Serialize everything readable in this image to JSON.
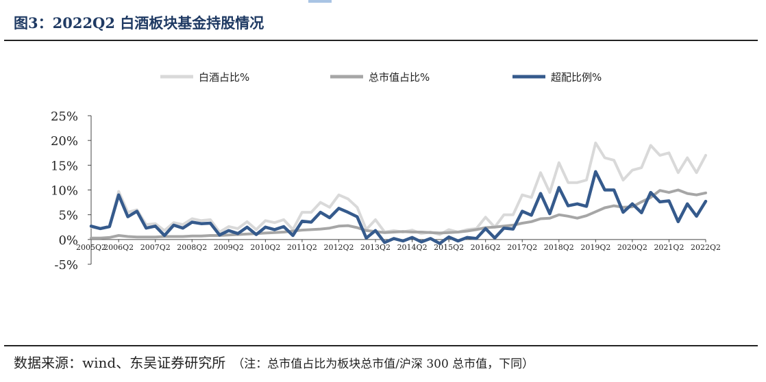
{
  "header": {
    "title": "图3：2022Q2 白酒板块基金持股情况"
  },
  "footer": {
    "source": "数据来源：wind、东吴证券研究所",
    "note": "（注：总市值占比为板块总市值/沪深 300 总市值，下同）"
  },
  "chart_data": {
    "type": "line",
    "title": "",
    "xlabel": "",
    "ylabel": "",
    "ylim": [
      -5,
      25
    ],
    "yticks": [
      "25%",
      "20%",
      "15%",
      "10%",
      "5%",
      "0%",
      "-5%"
    ],
    "ytick_values": [
      25,
      20,
      15,
      10,
      5,
      0,
      -5
    ],
    "x_tick_labels": [
      "2005Q2",
      "2006Q2",
      "2007Q2",
      "2008Q2",
      "2009Q2",
      "2010Q2",
      "2011Q2",
      "2012Q2",
      "2013Q2",
      "2014Q2",
      "2015Q2",
      "2016Q2",
      "2017Q2",
      "2018Q2",
      "2019Q2",
      "2020Q2",
      "2021Q2",
      "2022Q2"
    ],
    "x": [
      "2005Q2",
      "2005Q4",
      "2006Q1",
      "2006Q2",
      "2006Q3",
      "2006Q4",
      "2007Q1",
      "2007Q2",
      "2007Q3",
      "2007Q4",
      "2008Q1",
      "2008Q2",
      "2008Q3",
      "2008Q4",
      "2009Q1",
      "2009Q2",
      "2009Q3",
      "2009Q4",
      "2010Q1",
      "2010Q2",
      "2010Q3",
      "2010Q4",
      "2011Q1",
      "2011Q2",
      "2011Q3",
      "2011Q4",
      "2012Q1",
      "2012Q2",
      "2012Q3",
      "2012Q4",
      "2013Q1",
      "2013Q2",
      "2013Q3",
      "2013Q4",
      "2014Q1",
      "2014Q2",
      "2014Q3",
      "2014Q4",
      "2015Q1",
      "2015Q2",
      "2015Q3",
      "2015Q4",
      "2016Q1",
      "2016Q2",
      "2016Q3",
      "2016Q4",
      "2017Q1",
      "2017Q2",
      "2017Q3",
      "2017Q4",
      "2018Q1",
      "2018Q2",
      "2018Q3",
      "2018Q4",
      "2019Q1",
      "2019Q2",
      "2019Q3",
      "2019Q4",
      "2020Q1",
      "2020Q2",
      "2020Q3",
      "2020Q4",
      "2021Q1",
      "2021Q2",
      "2021Q3",
      "2021Q4",
      "2022Q1",
      "2022Q2"
    ],
    "series": [
      {
        "name": "白酒占比%",
        "color": "#d9d9d9",
        "values": [
          2.5,
          2.2,
          2.6,
          9.7,
          5.5,
          6.0,
          3.0,
          3.2,
          1.8,
          3.4,
          3.0,
          4.2,
          3.8,
          4.0,
          1.5,
          2.6,
          2.2,
          3.6,
          2.0,
          3.8,
          3.4,
          4.0,
          2.0,
          5.5,
          5.5,
          7.5,
          6.5,
          9.0,
          8.2,
          6.5,
          2.0,
          4.0,
          1.5,
          1.8,
          1.5,
          1.9,
          1.2,
          1.5,
          1.0,
          2.0,
          1.5,
          2.0,
          2.2,
          4.5,
          2.5,
          5.0,
          5.0,
          9.0,
          8.5,
          13.5,
          9.5,
          15.5,
          11.5,
          11.5,
          12.0,
          19.5,
          16.5,
          16.0,
          12.0,
          14.0,
          14.5,
          19.0,
          17.0,
          17.5,
          13.5,
          16.5,
          13.5,
          17.0
        ]
      },
      {
        "name": "总市值占比%",
        "color": "#a6a6a6",
        "values": [
          0.3,
          0.3,
          0.4,
          0.8,
          0.6,
          0.5,
          0.5,
          0.5,
          0.6,
          0.6,
          0.6,
          0.7,
          0.7,
          0.8,
          0.8,
          0.9,
          1.0,
          1.1,
          1.2,
          1.3,
          1.4,
          1.5,
          1.7,
          1.9,
          2.0,
          2.1,
          2.3,
          2.7,
          2.8,
          2.4,
          1.8,
          1.6,
          1.4,
          1.5,
          1.6,
          1.5,
          1.5,
          1.4,
          1.3,
          1.4,
          1.5,
          1.7,
          2.0,
          2.4,
          2.5,
          2.7,
          2.9,
          3.3,
          3.6,
          4.2,
          4.3,
          5.0,
          4.7,
          4.3,
          4.8,
          5.6,
          6.4,
          6.8,
          6.5,
          6.6,
          7.6,
          8.5,
          9.9,
          9.5,
          10.0,
          9.3,
          9.0,
          9.4
        ]
      },
      {
        "name": "超配比例%",
        "color": "#355a8c",
        "values": [
          2.7,
          2.2,
          2.6,
          9.0,
          4.6,
          5.7,
          2.3,
          2.7,
          0.8,
          2.9,
          2.3,
          3.5,
          3.2,
          3.3,
          0.9,
          1.8,
          1.2,
          2.5,
          1.0,
          2.5,
          2.0,
          2.6,
          0.8,
          3.7,
          3.5,
          5.5,
          4.4,
          6.3,
          5.5,
          4.6,
          0.3,
          1.8,
          -0.6,
          0.2,
          -0.3,
          0.4,
          -0.5,
          0.2,
          -0.8,
          0.5,
          -0.3,
          0.4,
          0.2,
          2.2,
          0.3,
          2.3,
          2.1,
          5.7,
          4.9,
          9.3,
          5.2,
          10.5,
          6.8,
          7.2,
          6.7,
          13.7,
          10.0,
          10.0,
          5.5,
          7.2,
          5.4,
          9.5,
          7.6,
          7.8,
          3.6,
          7.2,
          4.7,
          7.7
        ]
      }
    ],
    "legend": "top",
    "grid": false
  }
}
